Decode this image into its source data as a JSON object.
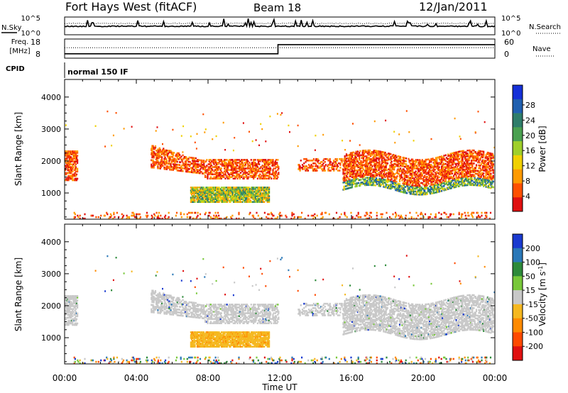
{
  "header": {
    "station": "Fort Hays West (fitACF)",
    "beam": "Beam 18",
    "date": "12/Jan/2011"
  },
  "status_panels": {
    "nsky_label": "N.Sky",
    "nsearch_label": "N.Search",
    "freq_label_top": "Freq.",
    "freq_label_bottom": "[MHz]",
    "nave_label": "Nave",
    "cpid_label": "CPID",
    "cpid_value": "normal 150 IF",
    "count_ticks": [
      "10^5",
      "10^0"
    ],
    "freq_ticks": [
      "18",
      "8"
    ],
    "nave_ticks": [
      "60",
      "0"
    ],
    "freq_levels": [
      {
        "t": 0,
        "mhz": 9.0
      },
      {
        "t": 11.9,
        "mhz": 9.0
      },
      {
        "t": 11.9,
        "mhz": 15.2
      },
      {
        "t": 24,
        "mhz": 15.2
      }
    ],
    "nave_level": 40
  },
  "chart_data": [
    {
      "type": "heatmap",
      "name": "Power",
      "ylabel": "Slant Range [km]",
      "xlabel": "Time UT",
      "x_ticks": [
        "00:00",
        "04:00",
        "08:00",
        "12:00",
        "16:00",
        "20:00",
        "00:00"
      ],
      "x_range_hours": [
        0,
        24
      ],
      "y_ticks": [
        "1000",
        "2000",
        "3000",
        "4000"
      ],
      "y_range_km": [
        180,
        4550
      ],
      "colorbar_label": "Power [dB]",
      "colorbar_ticks": [
        "4",
        "8",
        "12",
        "16",
        "20",
        "24",
        "28"
      ],
      "colorbar_colors": [
        "#1530d8",
        "#2060b0",
        "#2e7d6a",
        "#4aa050",
        "#9fcf2a",
        "#f0d000",
        "#ff9a00",
        "#ff5000",
        "#e01010"
      ]
    },
    {
      "type": "heatmap",
      "name": "Velocity",
      "ylabel": "Slant Range [km]",
      "xlabel": "Time UT",
      "x_ticks": [
        "00:00",
        "04:00",
        "08:00",
        "12:00",
        "16:00",
        "20:00",
        "00:00"
      ],
      "x_range_hours": [
        0,
        24
      ],
      "y_ticks": [
        "1000",
        "2000",
        "3000",
        "4000"
      ],
      "y_range_km": [
        180,
        4550
      ],
      "colorbar_label": "Velocity [m s^-1]",
      "colorbar_ticks": [
        "200",
        "100",
        "50",
        "15",
        "-15",
        "-50",
        "-100",
        "-200"
      ],
      "colorbar_colors": [
        "#1a3ad0",
        "#2a78b8",
        "#2d8a3a",
        "#78c83a",
        "#c8c8c8",
        "#f5b820",
        "#ff8a00",
        "#ff4a00",
        "#e01010"
      ]
    }
  ]
}
